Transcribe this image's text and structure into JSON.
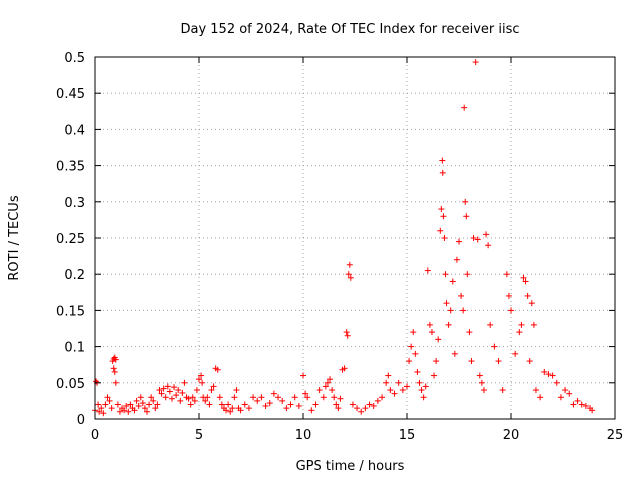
{
  "chart_data": {
    "type": "scatter",
    "title": "Day 152 of 2024, Rate Of TEC Index for receiver iisc",
    "xlabel": "GPS time / hours",
    "ylabel": "ROTI / TECUs",
    "xlim": [
      0,
      25
    ],
    "ylim": [
      0,
      0.5
    ],
    "xticks": [
      0,
      5,
      10,
      15,
      20,
      25
    ],
    "xtick_labels": [
      "0",
      "5",
      "10",
      "15",
      "20",
      "25"
    ],
    "yticks": [
      0,
      0.05,
      0.1,
      0.15,
      0.2,
      0.25,
      0.3,
      0.35,
      0.4,
      0.45,
      0.5
    ],
    "ytick_labels": [
      "0",
      "0.05",
      "0.1",
      "0.15",
      "0.2",
      "0.25",
      "0.3",
      "0.35",
      "0.4",
      "0.45",
      "0.5"
    ],
    "grid": true,
    "marker": "+",
    "marker_color": "#ff0000",
    "series": [
      {
        "points": [
          [
            0.0,
            0.012
          ],
          [
            0.05,
            0.052
          ],
          [
            0.1,
            0.05
          ],
          [
            0.15,
            0.02
          ],
          [
            0.2,
            0.01
          ],
          [
            0.3,
            0.015
          ],
          [
            0.4,
            0.008
          ],
          [
            0.5,
            0.02
          ],
          [
            0.6,
            0.03
          ],
          [
            0.7,
            0.025
          ],
          [
            0.8,
            0.015
          ],
          [
            0.85,
            0.08
          ],
          [
            0.9,
            0.083
          ],
          [
            0.95,
            0.085
          ],
          [
            1.0,
            0.082
          ],
          [
            0.9,
            0.07
          ],
          [
            0.95,
            0.065
          ],
          [
            1.0,
            0.05
          ],
          [
            1.1,
            0.02
          ],
          [
            1.2,
            0.01
          ],
          [
            1.3,
            0.015
          ],
          [
            1.4,
            0.012
          ],
          [
            1.5,
            0.018
          ],
          [
            1.6,
            0.01
          ],
          [
            1.7,
            0.02
          ],
          [
            1.8,
            0.015
          ],
          [
            1.9,
            0.012
          ],
          [
            2.0,
            0.025
          ],
          [
            2.1,
            0.018
          ],
          [
            2.2,
            0.03
          ],
          [
            2.3,
            0.022
          ],
          [
            2.4,
            0.015
          ],
          [
            2.5,
            0.01
          ],
          [
            2.6,
            0.02
          ],
          [
            2.7,
            0.03
          ],
          [
            2.8,
            0.025
          ],
          [
            2.9,
            0.015
          ],
          [
            3.0,
            0.02
          ],
          [
            3.1,
            0.04
          ],
          [
            3.2,
            0.035
          ],
          [
            3.3,
            0.042
          ],
          [
            3.4,
            0.03
          ],
          [
            3.5,
            0.045
          ],
          [
            3.6,
            0.038
          ],
          [
            3.7,
            0.028
          ],
          [
            3.8,
            0.044
          ],
          [
            3.9,
            0.033
          ],
          [
            4.0,
            0.04
          ],
          [
            4.1,
            0.025
          ],
          [
            4.2,
            0.036
          ],
          [
            4.3,
            0.05
          ],
          [
            4.4,
            0.03
          ],
          [
            4.5,
            0.028
          ],
          [
            4.6,
            0.02
          ],
          [
            4.7,
            0.03
          ],
          [
            4.8,
            0.025
          ],
          [
            4.9,
            0.04
          ],
          [
            5.0,
            0.055
          ],
          [
            5.1,
            0.06
          ],
          [
            5.15,
            0.05
          ],
          [
            5.2,
            0.03
          ],
          [
            5.3,
            0.025
          ],
          [
            5.4,
            0.03
          ],
          [
            5.5,
            0.02
          ],
          [
            5.6,
            0.04
          ],
          [
            5.7,
            0.045
          ],
          [
            5.8,
            0.07
          ],
          [
            5.9,
            0.068
          ],
          [
            6.0,
            0.03
          ],
          [
            6.1,
            0.02
          ],
          [
            6.2,
            0.015
          ],
          [
            6.3,
            0.012
          ],
          [
            6.4,
            0.02
          ],
          [
            6.5,
            0.01
          ],
          [
            6.6,
            0.015
          ],
          [
            6.7,
            0.03
          ],
          [
            6.8,
            0.04
          ],
          [
            6.9,
            0.015
          ],
          [
            7.0,
            0.012
          ],
          [
            7.2,
            0.02
          ],
          [
            7.4,
            0.015
          ],
          [
            7.6,
            0.03
          ],
          [
            7.8,
            0.025
          ],
          [
            8.0,
            0.03
          ],
          [
            8.2,
            0.018
          ],
          [
            8.4,
            0.022
          ],
          [
            8.6,
            0.035
          ],
          [
            8.8,
            0.03
          ],
          [
            9.0,
            0.025
          ],
          [
            9.2,
            0.015
          ],
          [
            9.4,
            0.02
          ],
          [
            9.6,
            0.03
          ],
          [
            9.8,
            0.018
          ],
          [
            10.0,
            0.06
          ],
          [
            10.1,
            0.035
          ],
          [
            10.2,
            0.03
          ],
          [
            10.4,
            0.012
          ],
          [
            10.6,
            0.02
          ],
          [
            10.8,
            0.04
          ],
          [
            11.0,
            0.03
          ],
          [
            11.1,
            0.045
          ],
          [
            11.2,
            0.05
          ],
          [
            11.3,
            0.055
          ],
          [
            11.4,
            0.04
          ],
          [
            11.5,
            0.03
          ],
          [
            11.6,
            0.02
          ],
          [
            11.7,
            0.015
          ],
          [
            11.8,
            0.028
          ],
          [
            11.9,
            0.068
          ],
          [
            12.0,
            0.07
          ],
          [
            12.1,
            0.12
          ],
          [
            12.15,
            0.115
          ],
          [
            12.2,
            0.2
          ],
          [
            12.25,
            0.213
          ],
          [
            12.3,
            0.195
          ],
          [
            12.4,
            0.02
          ],
          [
            12.6,
            0.015
          ],
          [
            12.8,
            0.01
          ],
          [
            13.0,
            0.015
          ],
          [
            13.2,
            0.02
          ],
          [
            13.4,
            0.018
          ],
          [
            13.6,
            0.025
          ],
          [
            13.8,
            0.03
          ],
          [
            14.0,
            0.05
          ],
          [
            14.1,
            0.06
          ],
          [
            14.2,
            0.04
          ],
          [
            14.4,
            0.035
          ],
          [
            14.6,
            0.05
          ],
          [
            14.8,
            0.04
          ],
          [
            15.0,
            0.045
          ],
          [
            15.1,
            0.08
          ],
          [
            15.2,
            0.1
          ],
          [
            15.3,
            0.12
          ],
          [
            15.4,
            0.09
          ],
          [
            15.5,
            0.065
          ],
          [
            15.6,
            0.05
          ],
          [
            15.7,
            0.04
          ],
          [
            15.8,
            0.03
          ],
          [
            15.9,
            0.045
          ],
          [
            16.0,
            0.205
          ],
          [
            16.1,
            0.13
          ],
          [
            16.2,
            0.12
          ],
          [
            16.3,
            0.06
          ],
          [
            16.4,
            0.08
          ],
          [
            16.5,
            0.11
          ],
          [
            16.6,
            0.26
          ],
          [
            16.65,
            0.29
          ],
          [
            16.7,
            0.357
          ],
          [
            16.72,
            0.34
          ],
          [
            16.75,
            0.28
          ],
          [
            16.8,
            0.25
          ],
          [
            16.85,
            0.2
          ],
          [
            16.9,
            0.16
          ],
          [
            17.0,
            0.13
          ],
          [
            17.1,
            0.15
          ],
          [
            17.2,
            0.19
          ],
          [
            17.3,
            0.09
          ],
          [
            17.4,
            0.22
          ],
          [
            17.5,
            0.245
          ],
          [
            17.6,
            0.17
          ],
          [
            17.7,
            0.15
          ],
          [
            17.75,
            0.43
          ],
          [
            17.8,
            0.3
          ],
          [
            17.85,
            0.28
          ],
          [
            17.9,
            0.2
          ],
          [
            18.0,
            0.12
          ],
          [
            18.1,
            0.08
          ],
          [
            18.2,
            0.25
          ],
          [
            18.3,
            0.493
          ],
          [
            18.4,
            0.248
          ],
          [
            18.5,
            0.06
          ],
          [
            18.6,
            0.05
          ],
          [
            18.7,
            0.04
          ],
          [
            18.8,
            0.255
          ],
          [
            18.9,
            0.24
          ],
          [
            19.0,
            0.13
          ],
          [
            19.2,
            0.1
          ],
          [
            19.4,
            0.08
          ],
          [
            19.6,
            0.04
          ],
          [
            19.8,
            0.2
          ],
          [
            19.9,
            0.17
          ],
          [
            20.0,
            0.15
          ],
          [
            20.2,
            0.09
          ],
          [
            20.4,
            0.12
          ],
          [
            20.5,
            0.13
          ],
          [
            20.6,
            0.195
          ],
          [
            20.7,
            0.19
          ],
          [
            20.8,
            0.17
          ],
          [
            20.9,
            0.08
          ],
          [
            21.0,
            0.16
          ],
          [
            21.1,
            0.13
          ],
          [
            21.2,
            0.04
          ],
          [
            21.4,
            0.03
          ],
          [
            21.6,
            0.065
          ],
          [
            21.8,
            0.062
          ],
          [
            22.0,
            0.06
          ],
          [
            22.2,
            0.05
          ],
          [
            22.4,
            0.03
          ],
          [
            22.6,
            0.04
          ],
          [
            22.8,
            0.035
          ],
          [
            23.0,
            0.02
          ],
          [
            23.2,
            0.025
          ],
          [
            23.4,
            0.02
          ],
          [
            23.6,
            0.018
          ],
          [
            23.8,
            0.015
          ],
          [
            23.9,
            0.012
          ]
        ]
      }
    ]
  }
}
